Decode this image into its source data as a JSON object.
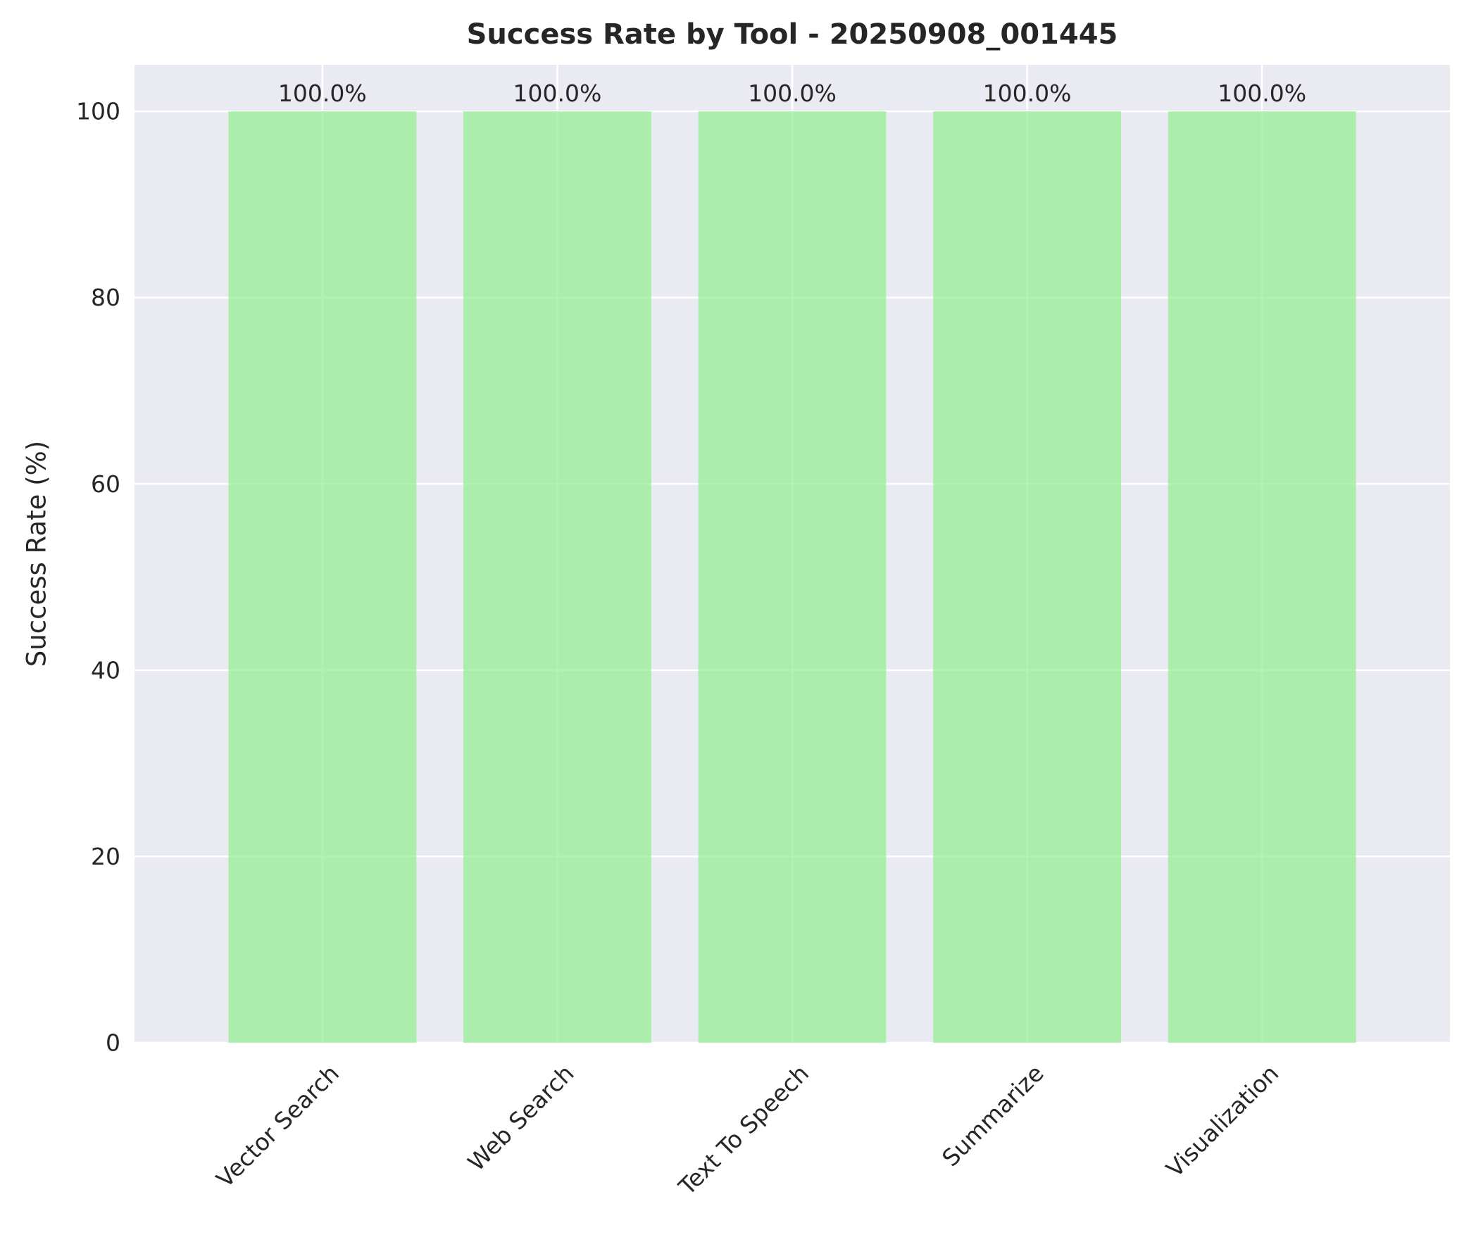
{
  "chart_data": {
    "type": "bar",
    "title": "Success Rate by Tool - 20250908_001445",
    "xlabel": "",
    "ylabel": "Success Rate (%)",
    "categories": [
      "Vector Search",
      "Web Search",
      "Text To Speech",
      "Summarize",
      "Visualization"
    ],
    "values": [
      100.0,
      100.0,
      100.0,
      100.0,
      100.0
    ],
    "data_labels": [
      "100.0%",
      "100.0%",
      "100.0%",
      "100.0%",
      "100.0%"
    ],
    "ylim": [
      0,
      105
    ],
    "yticks": [
      0,
      20,
      40,
      60,
      80,
      100
    ],
    "ytick_labels": [
      "0",
      "20",
      "40",
      "60",
      "80",
      "100"
    ],
    "grid": true,
    "colors": {
      "bar": "#90ee90",
      "plot_background": "#eaeaf2",
      "grid": "#ffffff",
      "text": "#262626"
    }
  }
}
